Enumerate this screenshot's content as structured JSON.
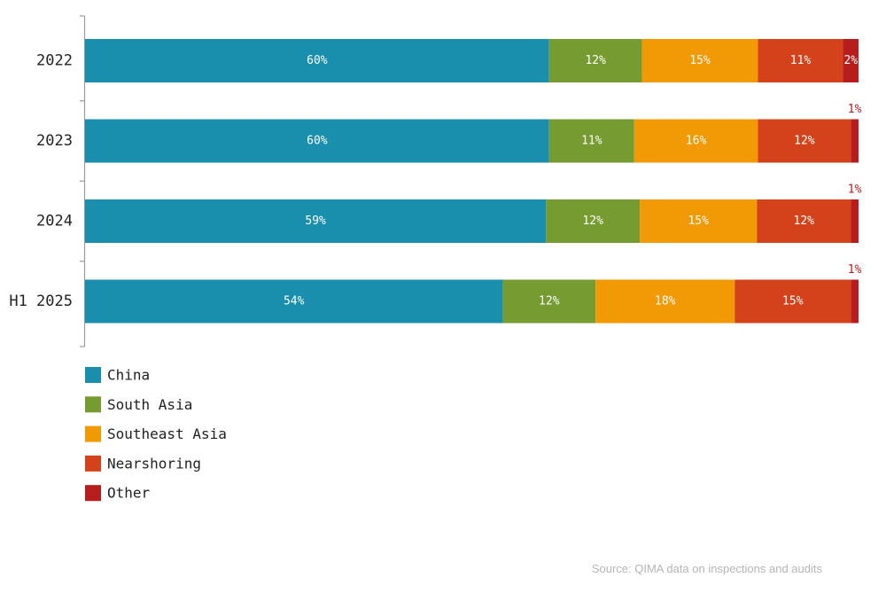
{
  "chart_data": {
    "type": "bar",
    "orientation": "horizontal",
    "stacked": true,
    "categories": [
      "2022",
      "2023",
      "2024",
      "H1 2025"
    ],
    "series": [
      {
        "name": "China",
        "color": "#1a8fad",
        "values": [
          60,
          60,
          59,
          54
        ],
        "labels": [
          "60%",
          "60%",
          "59%",
          "54%"
        ]
      },
      {
        "name": "South Asia",
        "color": "#769b30",
        "values": [
          12,
          11,
          12,
          12
        ],
        "labels": [
          "12%",
          "11%",
          "12%",
          "12%"
        ]
      },
      {
        "name": "Southeast Asia",
        "color": "#f29a06",
        "values": [
          15,
          16,
          15,
          18
        ],
        "labels": [
          "15%",
          "16%",
          "15%",
          "18%"
        ]
      },
      {
        "name": "Nearshoring",
        "color": "#d3421a",
        "values": [
          11,
          12,
          12,
          15
        ],
        "labels": [
          "11%",
          "12%",
          "12%",
          "15%"
        ]
      },
      {
        "name": "Other",
        "color": "#b81d1d",
        "values": [
          2,
          1,
          1,
          1
        ],
        "labels": [
          "2%",
          "1%",
          "1%",
          "1%"
        ]
      }
    ],
    "legend_position": "bottom-left",
    "grid": false
  },
  "source": "Source: QIMA data on inspections and audits"
}
